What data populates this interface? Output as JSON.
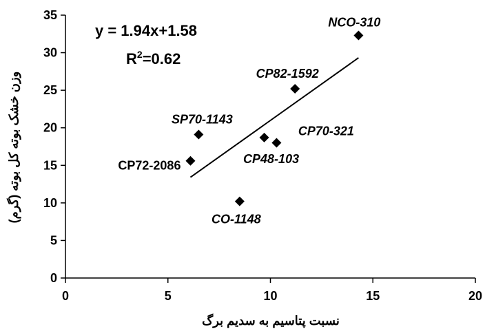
{
  "chart_data": {
    "type": "scatter",
    "title": "",
    "xlabel": "نسبت پتاسیم به سدیم برگ",
    "ylabel": "وزن خشک بوته کل بوته (گرم)",
    "xlim": [
      0,
      20
    ],
    "ylim": [
      0,
      35
    ],
    "xticks": [
      "0",
      "5",
      "10",
      "15",
      "20"
    ],
    "yticks": [
      "0",
      "5",
      "10",
      "15",
      "20",
      "25",
      "30",
      "35"
    ],
    "grid": false,
    "marker": "diamond",
    "points": [
      {
        "label": "CP72-2086",
        "x": 6.1,
        "y": 15.6
      },
      {
        "label": "SP70-1143",
        "x": 6.5,
        "y": 19.1
      },
      {
        "label": "CO-1148",
        "x": 8.5,
        "y": 10.2
      },
      {
        "label": "CP48-103",
        "x": 9.7,
        "y": 18.7
      },
      {
        "label": "CP70-321",
        "x": 10.3,
        "y": 18.0
      },
      {
        "label": "CP82-1592",
        "x": 11.2,
        "y": 25.2
      },
      {
        "label": "NCO-310",
        "x": 14.3,
        "y": 32.3
      }
    ],
    "trendline": {
      "equation": "y = 1.94x+1.58",
      "r2_prefix": "R",
      "r2_sup": "2",
      "r2_value": "=0.62",
      "x_start": 6.1,
      "x_end": 14.3
    }
  }
}
